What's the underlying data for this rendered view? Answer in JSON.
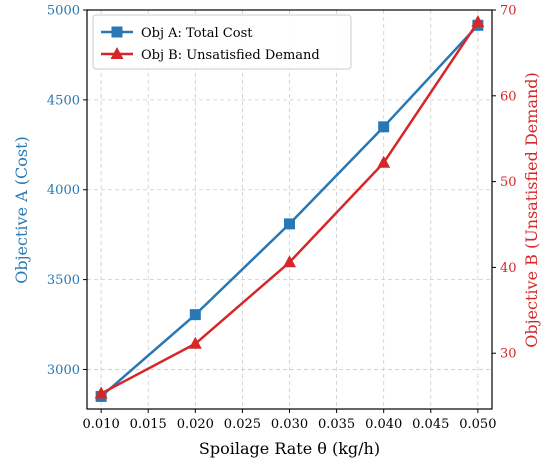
{
  "chart_data": {
    "type": "line",
    "title": "",
    "xlabel": "Spoilage Rate θ (kg/h)",
    "ylabel_left": "Objective A (Cost)",
    "ylabel_right": "Objective B (Unsatisfied Demand)",
    "x": [
      0.01,
      0.02,
      0.03,
      0.04,
      0.05
    ],
    "xlim": [
      0.0085,
      0.0515
    ],
    "xticks": [
      "0.010",
      "0.015",
      "0.020",
      "0.025",
      "0.030",
      "0.035",
      "0.040",
      "0.045",
      "0.050"
    ],
    "ylim_left": [
      2780,
      5000
    ],
    "yticks_left": [
      "3000",
      "3500",
      "4000",
      "4500",
      "5000"
    ],
    "ylim_right": [
      23.5,
      70
    ],
    "yticks_right": [
      "30",
      "40",
      "50",
      "60",
      "70"
    ],
    "grid": true,
    "legend_position": "top-left",
    "series": [
      {
        "name": "Obj A: Total Cost",
        "axis": "left",
        "marker": "square",
        "color": "#2878b5",
        "values": [
          2850,
          3305,
          3810,
          4350,
          4915
        ]
      },
      {
        "name": "Obj B: Unsatisfied Demand",
        "axis": "right",
        "marker": "triangle",
        "color": "#d62728",
        "values": [
          25.3,
          31.1,
          40.6,
          52.2,
          68.6
        ]
      }
    ],
    "left_axis_color": "#2878b5",
    "right_axis_color": "#d62728"
  }
}
